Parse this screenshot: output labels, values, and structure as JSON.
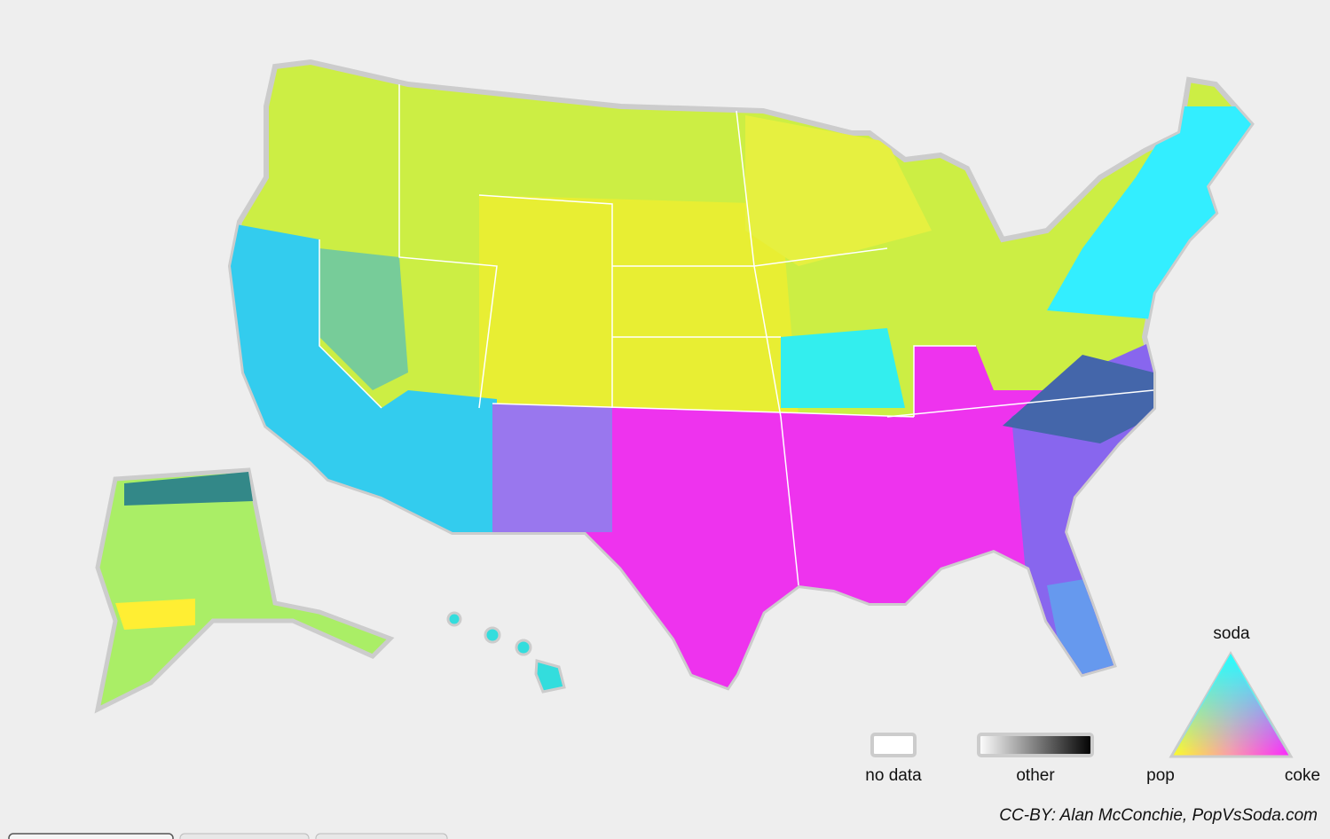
{
  "legend": {
    "no_data": "no data",
    "other": "other",
    "triangle": {
      "top": "soda",
      "left": "pop",
      "right": "coke"
    }
  },
  "credit": "CC-BY: Alan McConchie, PopVsSoda.com"
}
